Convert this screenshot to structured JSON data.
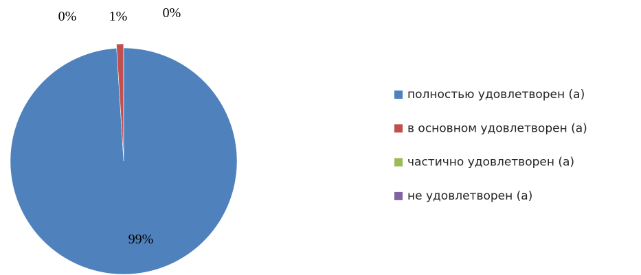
{
  "chart_data": {
    "type": "pie",
    "categories": [
      "полностью удовлетворен (а)",
      "в основном удовлетворен (а)",
      "частично удовлетворен (а)",
      "не удовлетворен (а)"
    ],
    "values": [
      99,
      1,
      0,
      0
    ],
    "value_labels": [
      "99%",
      "1%",
      "0%",
      "0%"
    ],
    "colors": [
      "#4f81bd",
      "#c0504d",
      "#9bbb59",
      "#8064a2"
    ],
    "legend": "right"
  }
}
